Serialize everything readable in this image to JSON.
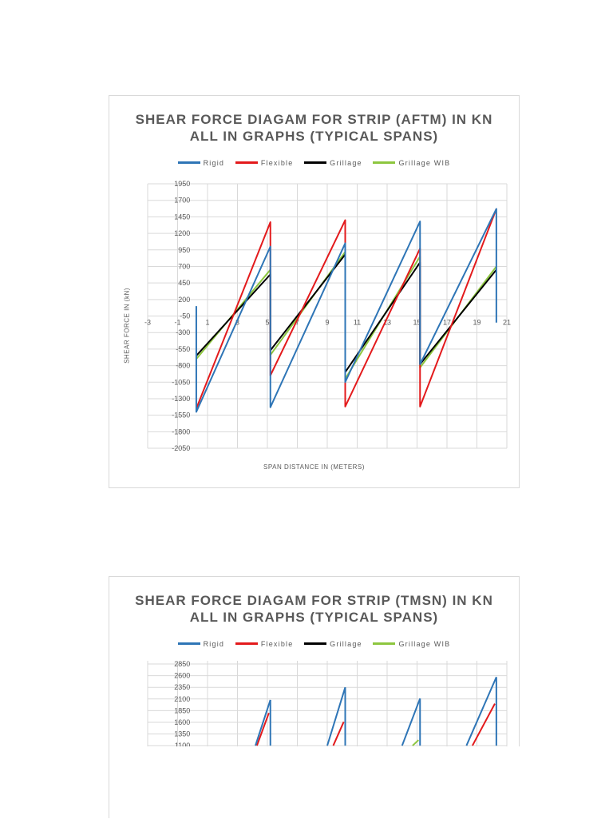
{
  "colors": {
    "rigid": "#2e75b6",
    "flexible": "#e31a1c",
    "grillage": "#000000",
    "grillage_wib": "#8dc63f",
    "grid": "#d9d9d9",
    "text": "#595959"
  },
  "chart_data": [
    {
      "type": "line",
      "title": "SHEAR FORCE DIAGAM FOR STRIP (AFTM) IN KN ALL IN GRAPHS (TYPICAL SPANS)",
      "title_lines": [
        "SHEAR FORCE DIAGAM FOR STRIP (AFTM) IN KN",
        "ALL IN GRAPHS (TYPICAL SPANS)"
      ],
      "xlabel": "SPAN DISTANCE IN (METERS)",
      "ylabel": "SHEAR FORCE IN (kN)",
      "xlim": [
        -3,
        21
      ],
      "ylim": [
        -2050,
        1950
      ],
      "x_ticks": [
        -3,
        -1,
        1,
        3,
        5,
        7,
        9,
        11,
        13,
        15,
        17,
        19,
        21
      ],
      "y_ticks": [
        1950,
        1700,
        1450,
        1200,
        950,
        700,
        450,
        200,
        -50,
        -300,
        -550,
        -800,
        -1050,
        -1300,
        -1550,
        -1800,
        -2050
      ],
      "x_axis_crosses_at": -50,
      "grid": true,
      "legend_position": "top",
      "legend": [
        "Rigid",
        "Flexible",
        "Grillage",
        "Grillage WIB"
      ],
      "series": [
        {
          "name": "Rigid",
          "color": "#2e75b6",
          "points": [
            [
              0.25,
              100
            ],
            [
              0.25,
              -1500
            ],
            [
              5.2,
              1000
            ],
            [
              5.2,
              -1430
            ],
            [
              10.2,
              1050
            ],
            [
              10.2,
              -1050
            ],
            [
              15.2,
              1380
            ],
            [
              15.2,
              -780
            ],
            [
              20.3,
              1570
            ],
            [
              20.3,
              -150
            ]
          ]
        },
        {
          "name": "Flexible",
          "color": "#e31a1c",
          "points": [
            [
              0.25,
              -1450
            ],
            [
              5.2,
              1370
            ],
            [
              5.2,
              -950
            ],
            [
              10.2,
              1400
            ],
            [
              10.2,
              -1420
            ],
            [
              15.2,
              970
            ],
            [
              15.2,
              -1420
            ],
            [
              20.3,
              1570
            ]
          ]
        },
        {
          "name": "Grillage",
          "color": "#000000",
          "points": [
            [
              0.25,
              -650
            ],
            [
              5.2,
              580
            ],
            [
              5.2,
              -570
            ],
            [
              10.2,
              880
            ],
            [
              10.2,
              -900
            ],
            [
              15.2,
              760
            ],
            [
              15.2,
              -780
            ],
            [
              20.3,
              650
            ]
          ]
        },
        {
          "name": "Grillage WIB",
          "color": "#8dc63f",
          "points": [
            [
              0.25,
              -700
            ],
            [
              5.2,
              650
            ],
            [
              5.2,
              -640
            ],
            [
              10.2,
              920
            ],
            [
              10.2,
              -1000
            ],
            [
              15.2,
              850
            ],
            [
              15.2,
              -830
            ],
            [
              20.3,
              700
            ]
          ]
        }
      ]
    },
    {
      "type": "line",
      "title": "SHEAR FORCE DIAGAM FOR STRIP (TMSN) IN KN ALL IN GRAPHS (TYPICAL SPANS)",
      "title_lines": [
        "SHEAR FORCE DIAGAM FOR STRIP (TMSN) IN KN",
        "ALL IN GRAPHS (TYPICAL SPANS)"
      ],
      "legend": [
        "Rigid",
        "Flexible",
        "Grillage",
        "Grillage WIB"
      ],
      "legend_position": "top",
      "grid": true,
      "y_ticks_visible": [
        2850,
        2600,
        2350,
        2100,
        1850,
        1600,
        1350,
        1100
      ],
      "visible_ylim": [
        1100,
        2850
      ],
      "xlim": [
        -3,
        21
      ],
      "series": [
        {
          "name": "Rigid",
          "color": "#2e75b6",
          "points": [
            [
              4.2,
              1100
            ],
            [
              5.2,
              2080
            ],
            [
              5.2,
              1100
            ],
            [
              9.0,
              1100
            ],
            [
              10.2,
              2350
            ],
            [
              10.2,
              1100
            ],
            [
              14.0,
              1100
            ],
            [
              15.2,
              2110
            ],
            [
              15.2,
              1100
            ],
            [
              18.3,
              1100
            ],
            [
              20.3,
              2570
            ],
            [
              20.3,
              1100
            ]
          ]
        },
        {
          "name": "Flexible",
          "color": "#e31a1c",
          "points": [
            [
              4.3,
              1100
            ],
            [
              5.1,
              1800
            ],
            [
              9.4,
              1100
            ],
            [
              10.1,
              1610
            ],
            [
              18.7,
              1100
            ],
            [
              20.2,
              2000
            ]
          ]
        },
        {
          "name": "Grillage WIB",
          "color": "#8dc63f",
          "points": [
            [
              14.7,
              1100
            ],
            [
              15.1,
              1220
            ]
          ]
        }
      ]
    }
  ]
}
